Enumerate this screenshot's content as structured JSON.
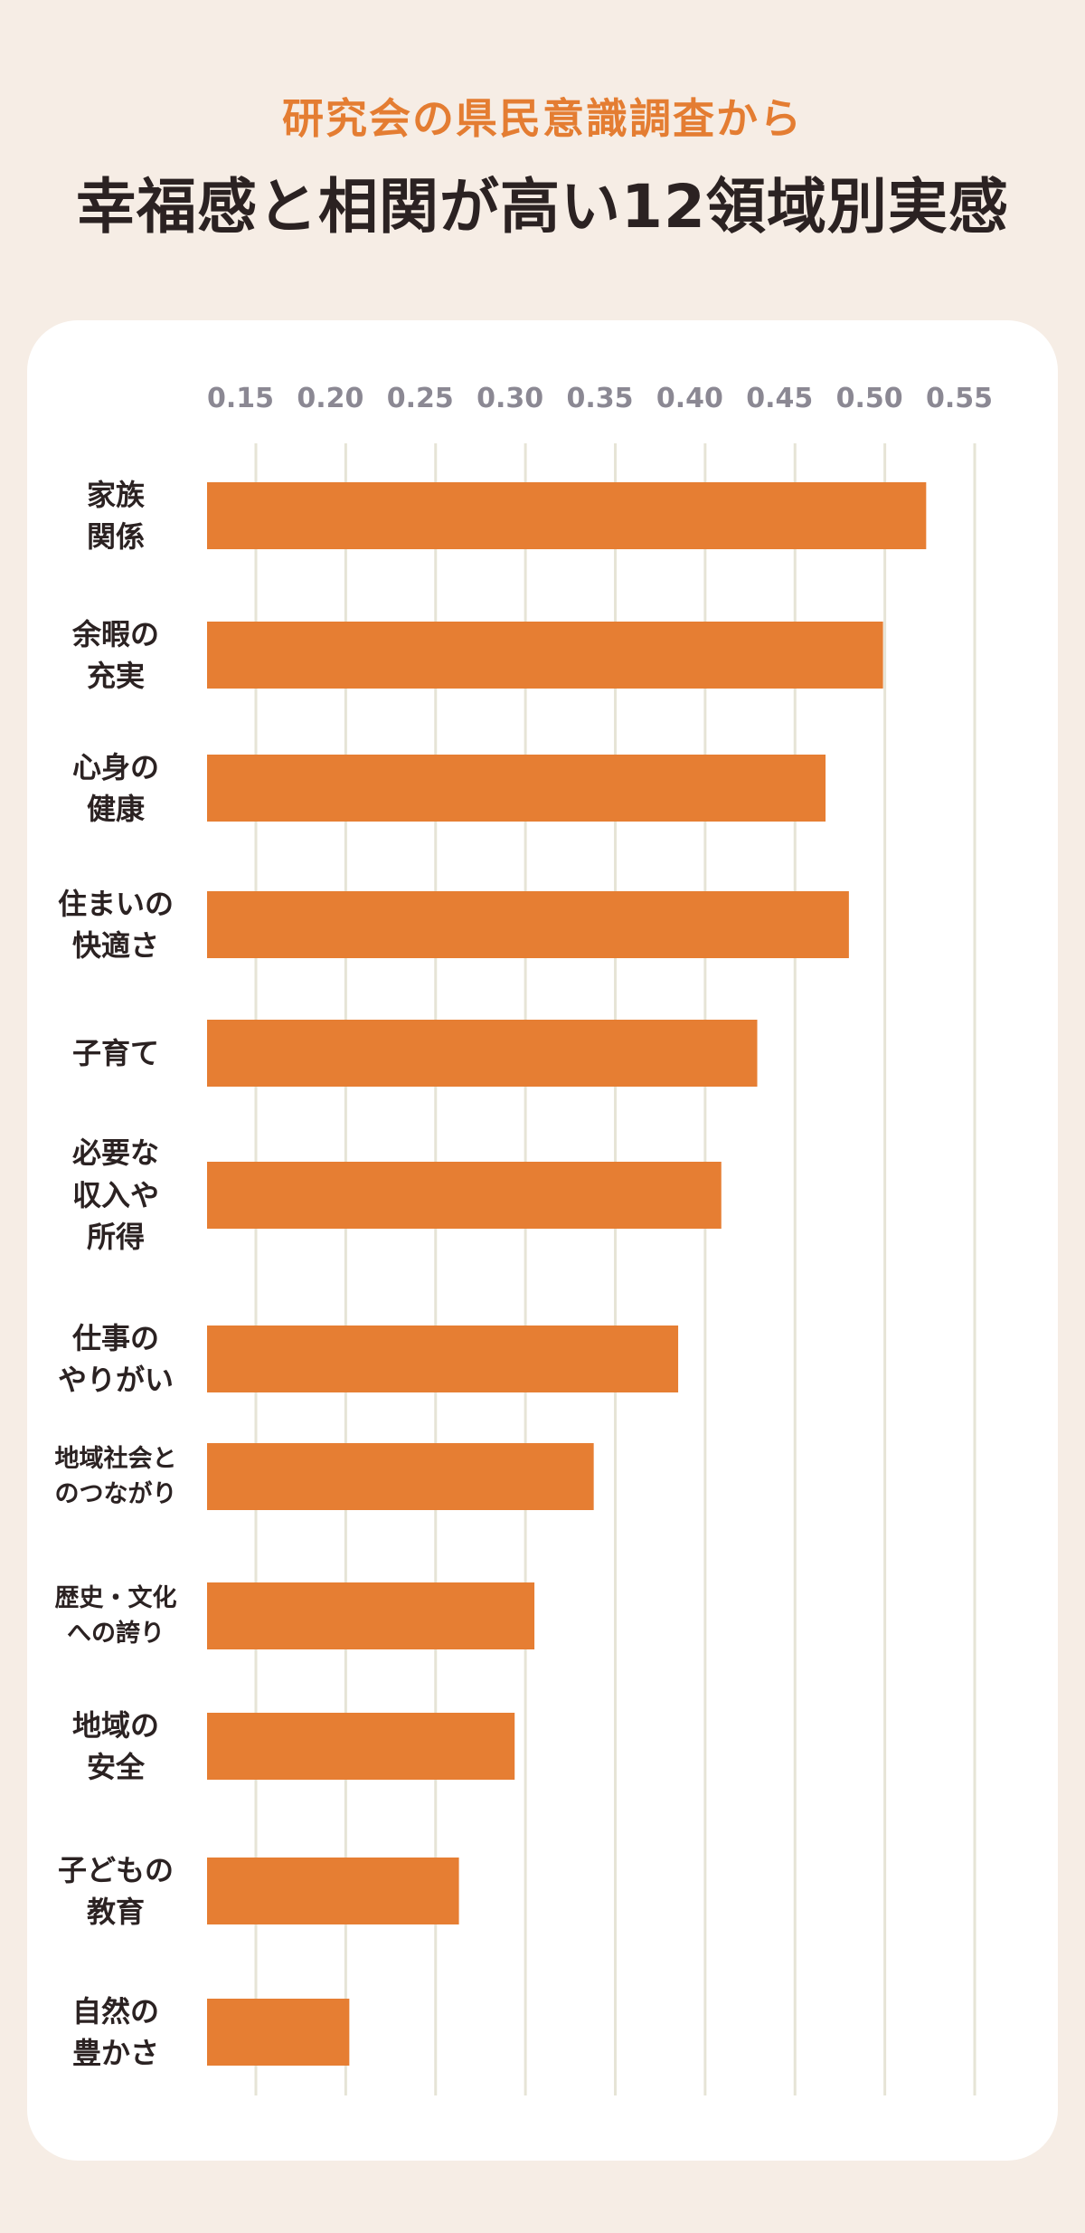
{
  "subtitle": "研究会の県民意識調査から",
  "title": "幸福感と相関が高い12領域別実感",
  "chart_data": {
    "type": "bar",
    "orientation": "horizontal",
    "title": "幸福感と相関が高い12領域別実感",
    "subtitle": "研究会の県民意識調査から",
    "xlabel": "",
    "ylabel": "",
    "xlim": [
      0.15,
      0.55
    ],
    "xticks": [
      "0.15",
      "0.20",
      "0.25",
      "0.30",
      "0.35",
      "0.40",
      "0.45",
      "0.50",
      "0.55"
    ],
    "grid": true,
    "categories": [
      "家族\n関係",
      "余暇の\n充実",
      "心身の\n健康",
      "住まいの\n快適さ",
      "子育て",
      "必要な\n収入や\n所得",
      "仕事の\nやりがい",
      "地域社会と\nのつながり",
      "歴史・文化\nへの誇り",
      "地域の\n安全",
      "子どもの\n教育",
      "自然の\n豊かさ"
    ],
    "values": [
      0.523,
      0.499,
      0.467,
      0.48,
      0.429,
      0.409,
      0.385,
      0.338,
      0.305,
      0.294,
      0.263,
      0.202
    ],
    "bar_color": "#e67e33",
    "grid_color": "#e6e4d6",
    "tick_color": "#8b8893"
  }
}
